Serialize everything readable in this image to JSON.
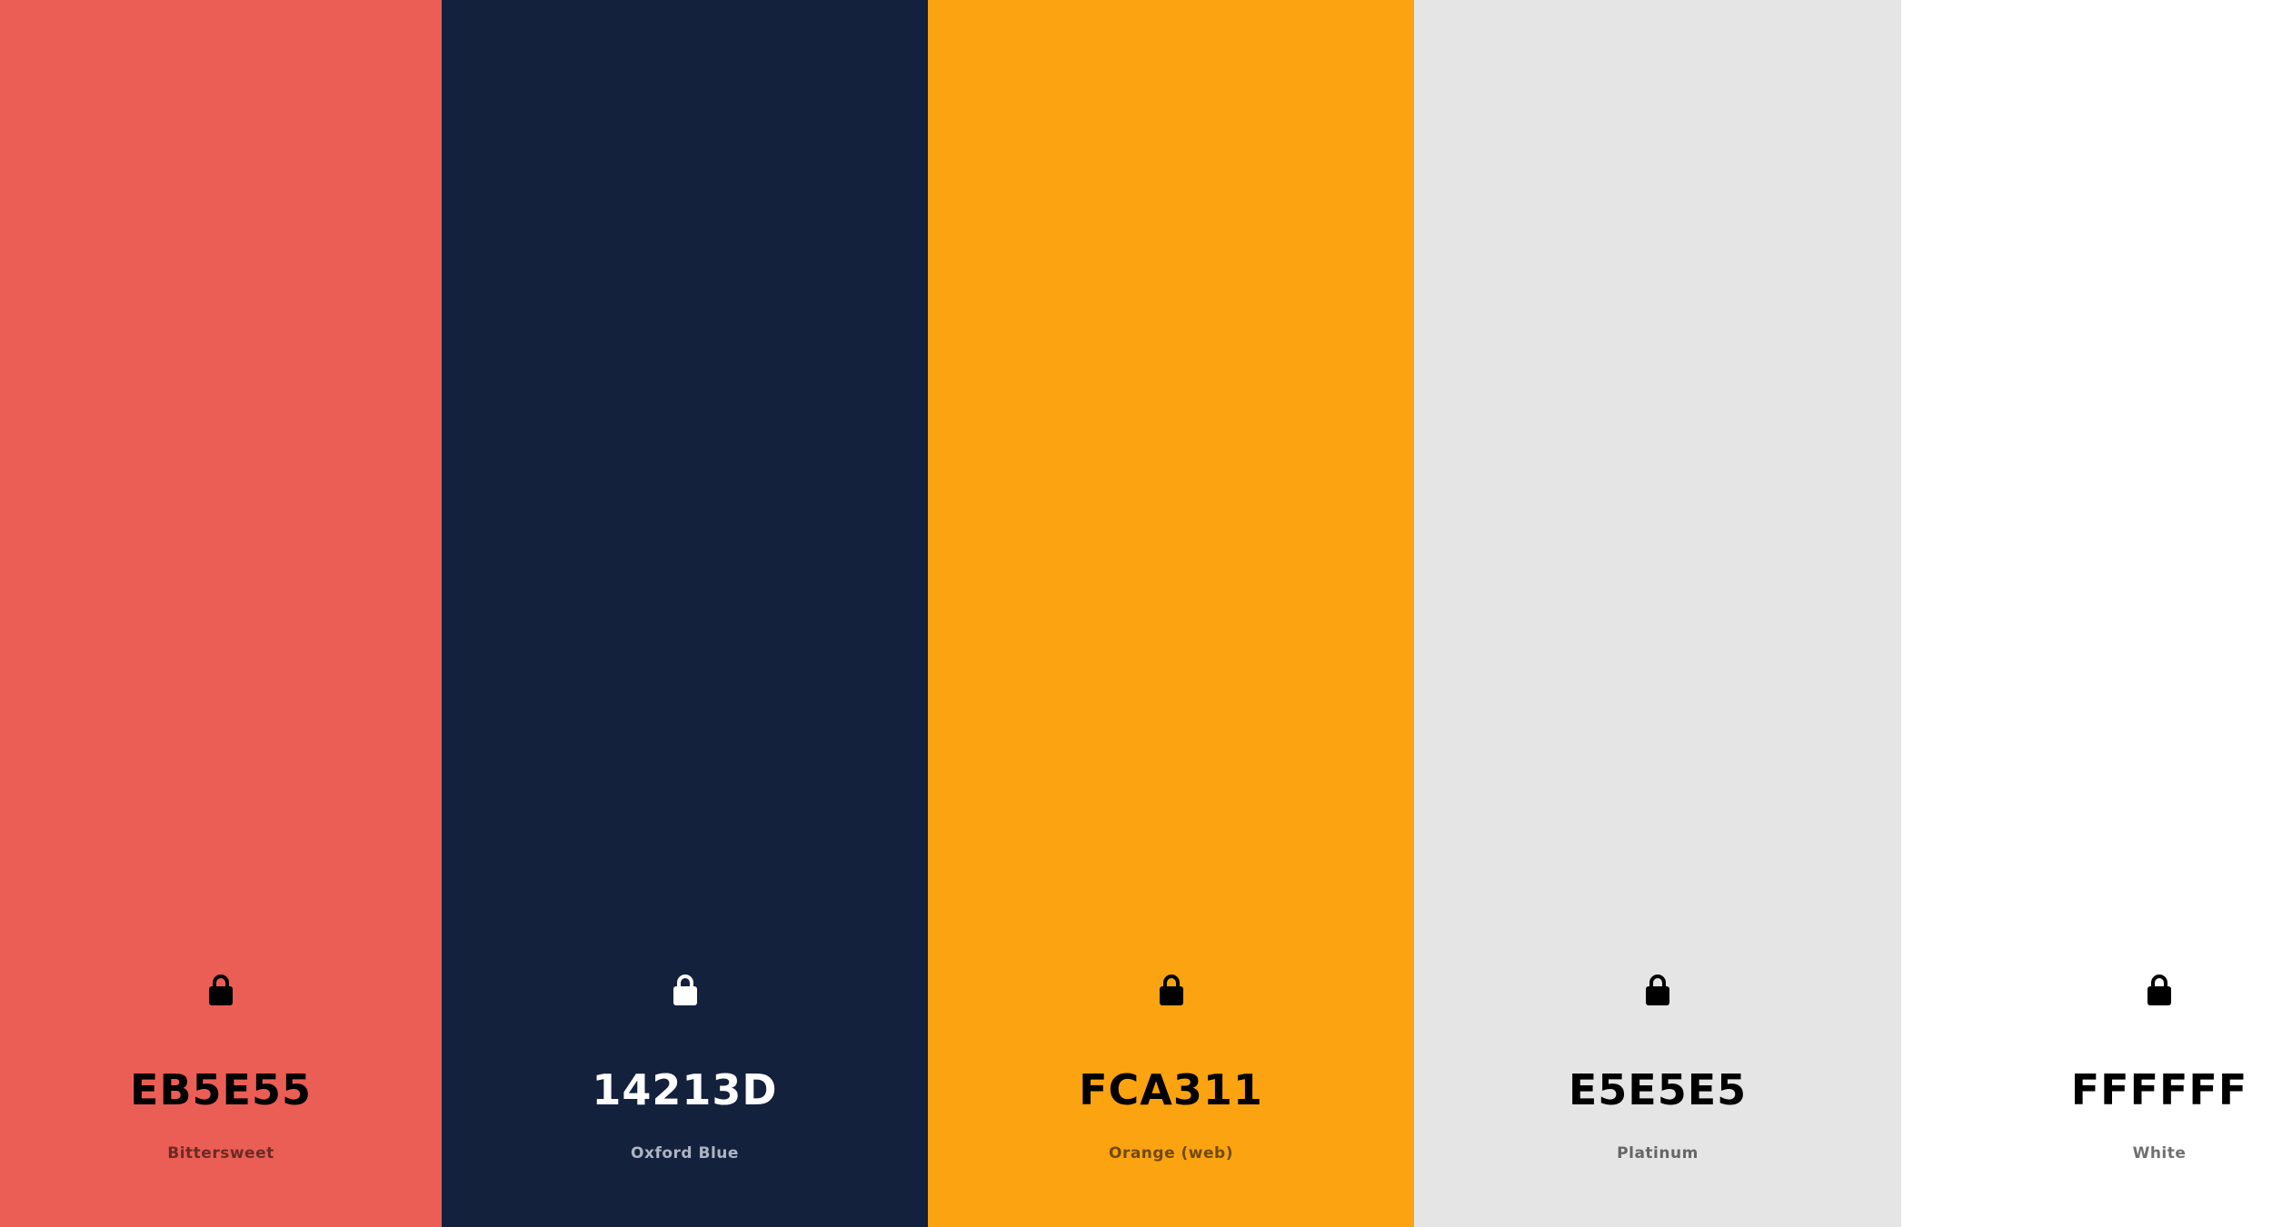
{
  "palette": {
    "swatches": [
      {
        "hex": "EB5E55",
        "name": "Bittersweet",
        "color": "#EB5E55",
        "text_color": "#000000",
        "name_color": "#6b2a24",
        "lock_color": "#000000",
        "icon": "lock-icon"
      },
      {
        "hex": "14213D",
        "name": "Oxford Blue",
        "color": "#14213D",
        "text_color": "#FFFFFF",
        "name_color": "#aeb4c2",
        "lock_color": "#FFFFFF",
        "icon": "lock-icon"
      },
      {
        "hex": "FCA311",
        "name": "Orange (web)",
        "color": "#FCA311",
        "text_color": "#000000",
        "name_color": "#6f4a08",
        "lock_color": "#000000",
        "icon": "lock-icon"
      },
      {
        "hex": "E5E5E5",
        "name": "Platinum",
        "color": "#E5E5E5",
        "text_color": "#000000",
        "name_color": "#666666",
        "lock_color": "#000000",
        "icon": "lock-icon"
      },
      {
        "hex": "FFFFFF",
        "name": "White",
        "color": "#FFFFFF",
        "text_color": "#000000",
        "name_color": "#707070",
        "lock_color": "#000000",
        "icon": "lock-icon"
      }
    ]
  }
}
